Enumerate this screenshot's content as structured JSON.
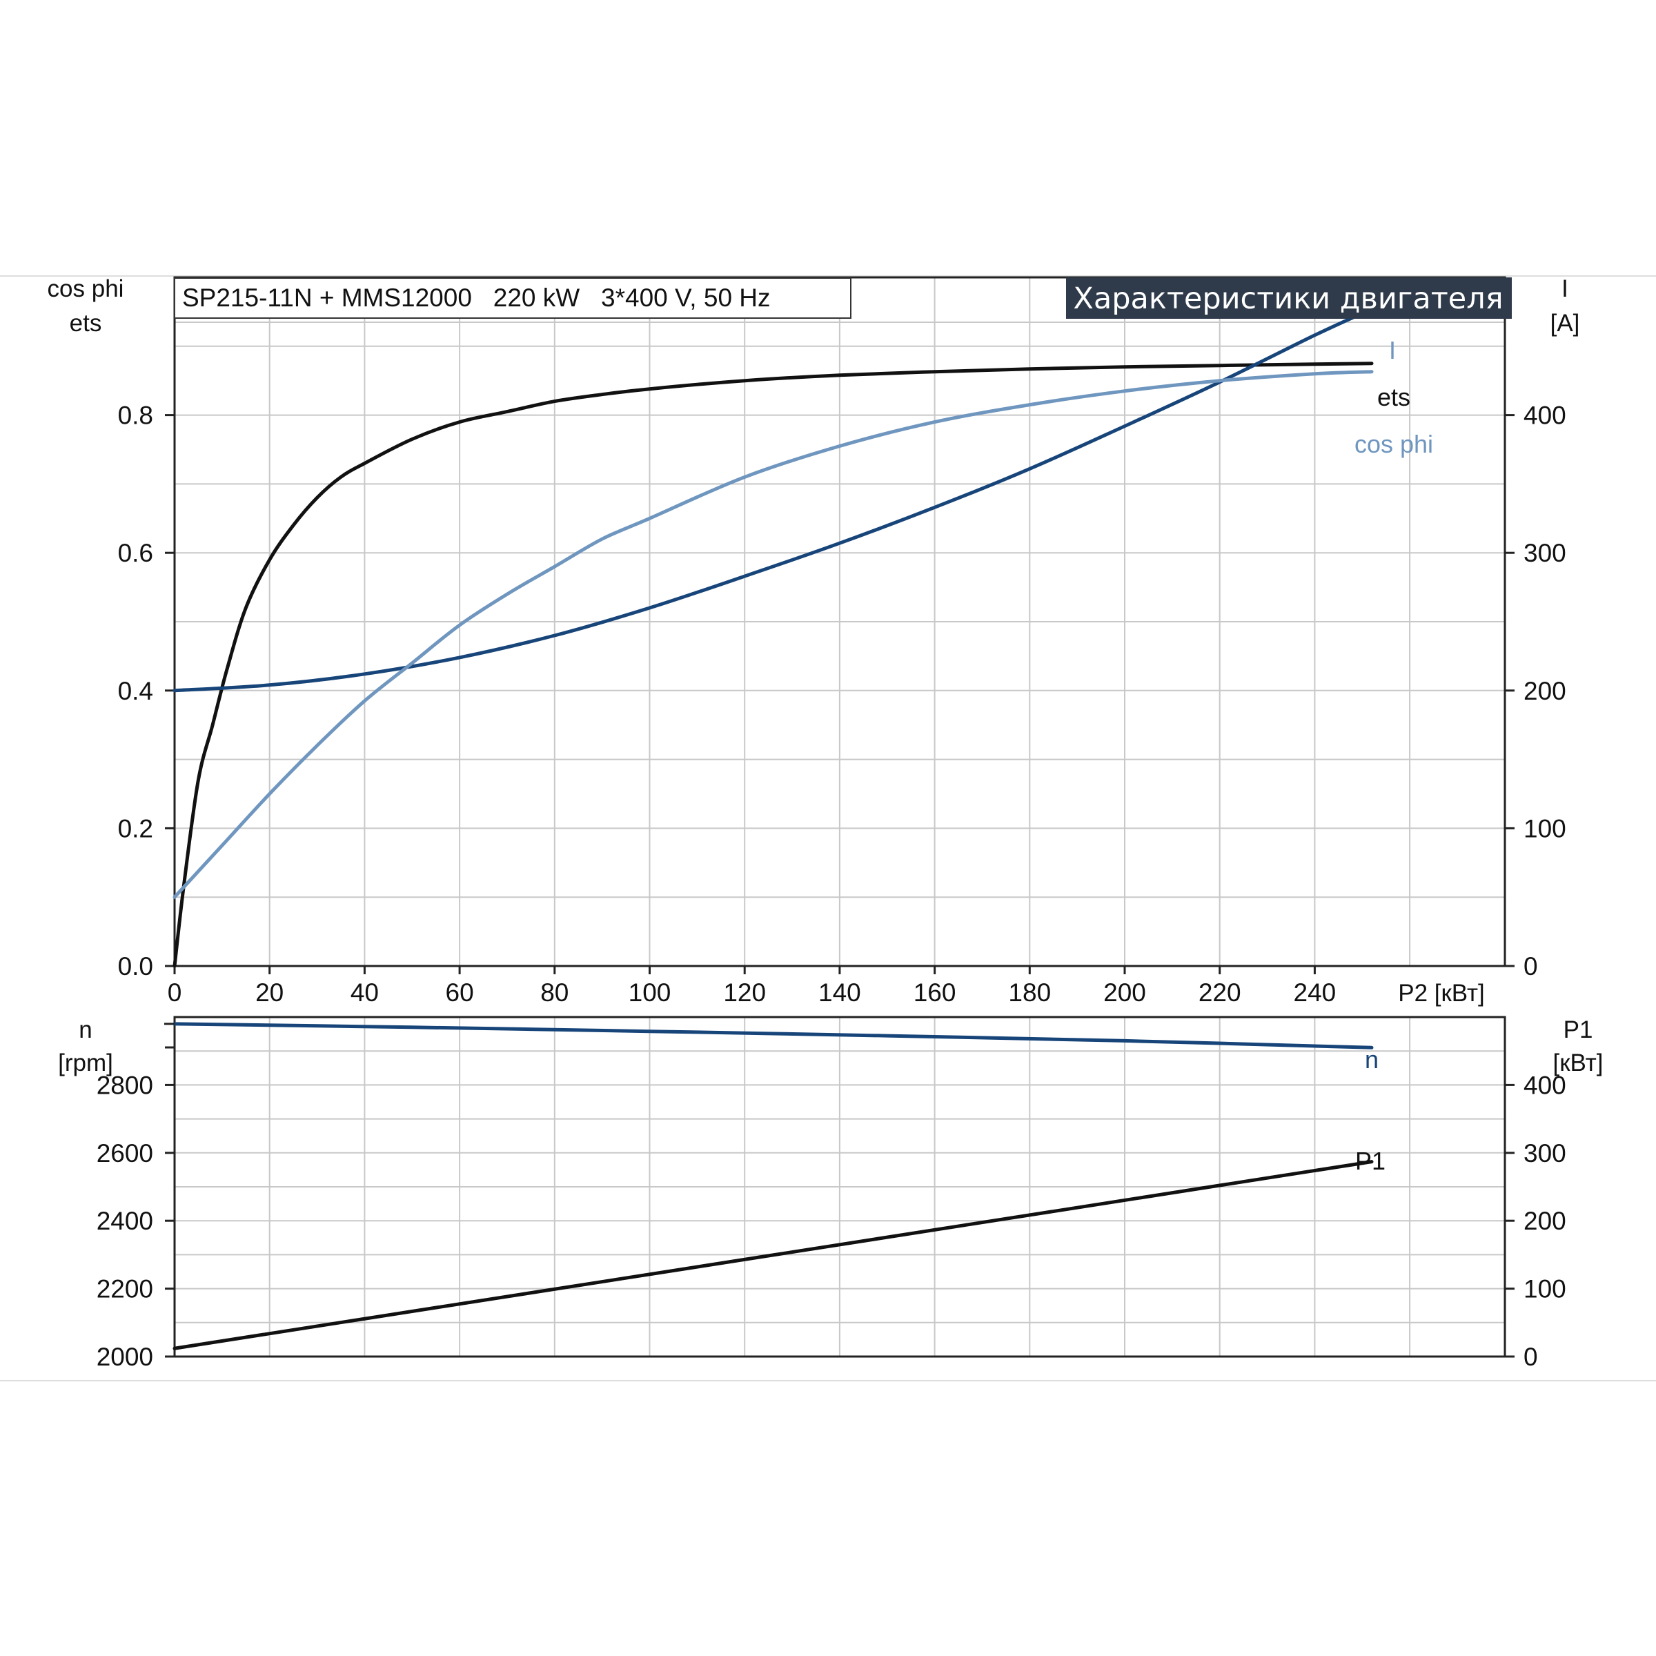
{
  "header": {
    "model": "SP215-11N + MMS12000   220 kW   3*400 V, 50 Hz",
    "title": "Характеристики двигателя"
  },
  "colors": {
    "ets": "#111111",
    "I": "#17457a",
    "cos_phi": "#6f96bf",
    "n": "#17457a",
    "P1": "#111111",
    "title_bg": "#2f3b4a"
  },
  "chart_data": [
    {
      "type": "line",
      "xlabel": "P2 [кВт]",
      "xlim": [
        0,
        280
      ],
      "xticks": [
        "0",
        "20",
        "40",
        "60",
        "80",
        "100",
        "120",
        "140",
        "160",
        "180",
        "200",
        "220",
        "240"
      ],
      "left_axis": {
        "label_line1": "cos phi",
        "label_line2": "ets",
        "ylim": [
          0,
          1.0
        ],
        "ticks": [
          "0.0",
          "0.2",
          "0.4",
          "0.6",
          "0.8"
        ]
      },
      "right_axis": {
        "label_line1": "I",
        "label_line2": "[A]",
        "ylim": [
          0,
          500
        ],
        "ticks": [
          "0",
          "100",
          "200",
          "300",
          "400"
        ]
      },
      "grid": true,
      "series": [
        {
          "name": "ets",
          "axis": "left",
          "x": [
            0,
            2,
            5,
            8,
            11,
            15,
            20,
            25,
            30,
            35,
            40,
            50,
            60,
            70,
            80,
            90,
            100,
            120,
            140,
            160,
            180,
            200,
            220,
            240,
            252
          ],
          "y": [
            0,
            0.12,
            0.27,
            0.35,
            0.43,
            0.52,
            0.59,
            0.64,
            0.68,
            0.71,
            0.73,
            0.765,
            0.79,
            0.805,
            0.82,
            0.83,
            0.838,
            0.85,
            0.858,
            0.863,
            0.867,
            0.87,
            0.872,
            0.874,
            0.875
          ]
        },
        {
          "name": "I",
          "axis": "right",
          "x": [
            0,
            20,
            40,
            60,
            80,
            100,
            120,
            140,
            160,
            180,
            200,
            220,
            240,
            252
          ],
          "y": [
            200,
            204,
            212,
            224,
            240,
            260,
            283,
            307,
            333,
            361,
            392,
            424,
            458,
            477
          ]
        },
        {
          "name": "cos phi",
          "axis": "left",
          "x": [
            0,
            10,
            20,
            30,
            40,
            50,
            60,
            70,
            80,
            90,
            100,
            120,
            140,
            160,
            180,
            200,
            220,
            240,
            252
          ],
          "y": [
            0.1,
            0.175,
            0.25,
            0.32,
            0.385,
            0.44,
            0.495,
            0.54,
            0.58,
            0.62,
            0.65,
            0.71,
            0.755,
            0.79,
            0.815,
            0.835,
            0.85,
            0.86,
            0.863
          ]
        }
      ]
    },
    {
      "type": "line",
      "xlim": [
        0,
        280
      ],
      "left_axis": {
        "label_line1": "n",
        "label_line2": "[rpm]",
        "ylim": [
          2000,
          3000
        ],
        "ticks": [
          "2000",
          "2200",
          "2400",
          "2600",
          "2800"
        ]
      },
      "right_axis": {
        "label_line1": "P1",
        "label_line2": "[кВт]",
        "ylim": [
          0,
          500
        ],
        "ticks": [
          "0",
          "100",
          "200",
          "300",
          "400"
        ]
      },
      "grid": true,
      "series": [
        {
          "name": "n",
          "axis": "left",
          "x": [
            0,
            50,
            100,
            150,
            200,
            252
          ],
          "y": [
            2980,
            2970,
            2958,
            2945,
            2930,
            2910
          ]
        },
        {
          "name": "P1",
          "axis": "right",
          "x": [
            0,
            252
          ],
          "y": [
            12,
            287
          ]
        }
      ]
    }
  ]
}
